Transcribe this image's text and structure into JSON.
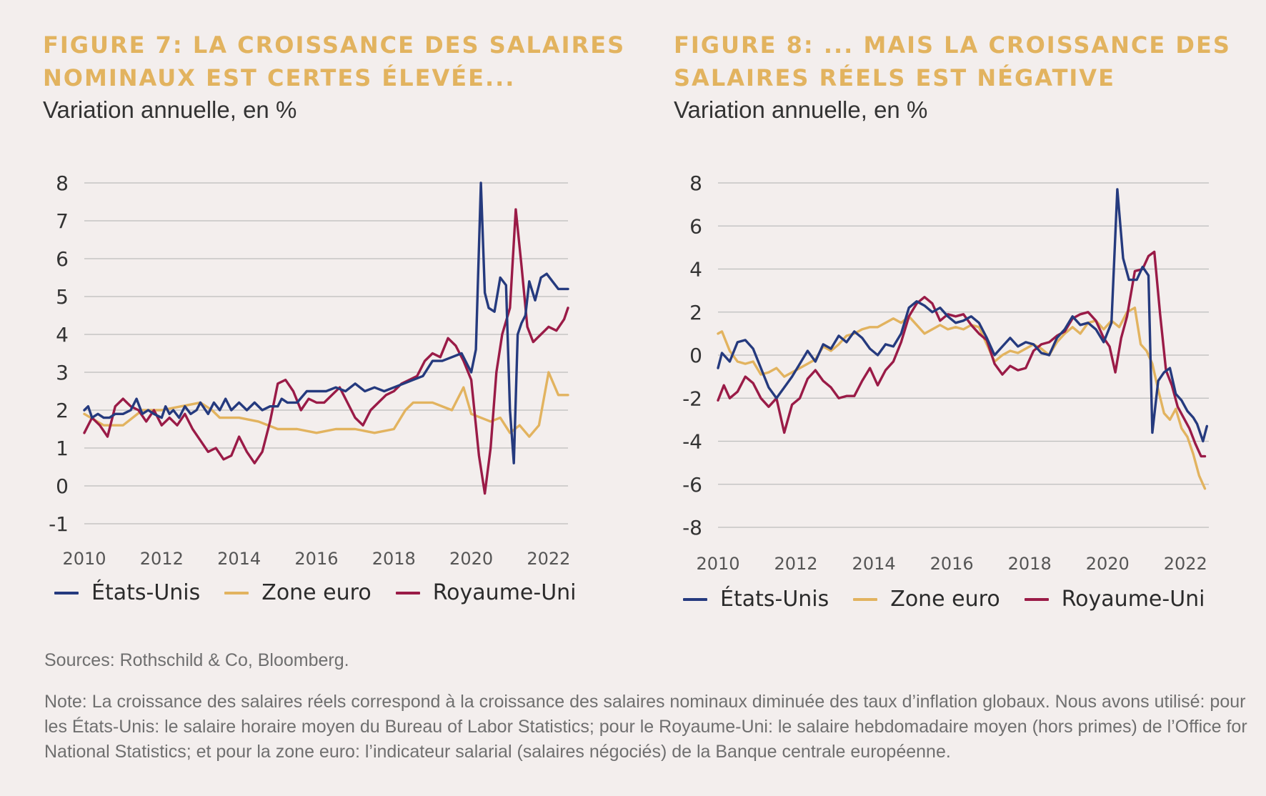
{
  "legend": {
    "us": "États-Unis",
    "ez": "Zone euro",
    "uk": "Royaume-Uni"
  },
  "colors": {
    "us": "#253a7e",
    "ez": "#e2b35f",
    "uk": "#9a1b47",
    "title": "#e2b35f",
    "grid": "#bdbdbd",
    "background": "#f3eeed"
  },
  "fig7": {
    "title_line1": "FIGURE 7: LA CROISSANCE DES SALAIRES",
    "title_line2": "NOMINAUX EST CERTES ÉLEVÉE...",
    "subtitle": "Variation annuelle, en %"
  },
  "fig8": {
    "title_line1": "FIGURE 8: ... MAIS LA CROISSANCE DES",
    "title_line2": "SALAIRES RÉELS EST NÉGATIVE",
    "subtitle": "Variation annuelle, en %"
  },
  "sources": "Sources: Rothschild & Co, Bloomberg.",
  "note": "Note: La croissance des salaires réels correspond à la croissance des salaires nominaux diminuée des taux d’inflation globaux. Nous avons utilisé: pour les États-Unis: le salaire horaire moyen du Bureau of Labor Statistics; pour le Royaume-Uni: le salaire hebdomadaire moyen (hors primes) de l’Office for National Statistics; et pour la zone euro: l’indicateur salarial (salaires négociés) de la Banque centrale européenne.",
  "chart_data": [
    {
      "type": "line",
      "title": "FIGURE 7: LA CROISSANCE DES SALAIRES NOMINAUX EST CERTES ÉLEVÉE...",
      "subtitle": "Variation annuelle, en %",
      "xlabel": "",
      "ylabel": "",
      "xlim": [
        2010,
        2022.5
      ],
      "ylim": [
        -1,
        8
      ],
      "x_ticks": [
        2010,
        2012,
        2014,
        2016,
        2018,
        2020,
        2022
      ],
      "y_ticks": [
        -1,
        0,
        1,
        2,
        3,
        4,
        5,
        6,
        7,
        8
      ],
      "grid": "horizontal",
      "legend_position": "bottom",
      "series": [
        {
          "name": "États-Unis",
          "x": [
            2010,
            2010.1,
            2010.2,
            2010.35,
            2010.5,
            2010.65,
            2010.8,
            2011,
            2011.2,
            2011.35,
            2011.5,
            2011.65,
            2011.8,
            2012,
            2012.1,
            2012.2,
            2012.3,
            2012.45,
            2012.6,
            2012.75,
            2012.9,
            2013,
            2013.2,
            2013.35,
            2013.5,
            2013.65,
            2013.8,
            2014,
            2014.2,
            2014.4,
            2014.6,
            2014.8,
            2015,
            2015.1,
            2015.25,
            2015.5,
            2015.75,
            2016,
            2016.25,
            2016.5,
            2016.75,
            2017,
            2017.25,
            2017.5,
            2017.75,
            2018,
            2018.25,
            2018.5,
            2018.75,
            2019,
            2019.25,
            2019.5,
            2019.75,
            2019.9,
            2020,
            2020.12,
            2020.25,
            2020.35,
            2020.45,
            2020.6,
            2020.75,
            2020.9,
            2021,
            2021.1,
            2021.2,
            2021.3,
            2021.4,
            2021.5,
            2021.65,
            2021.8,
            2021.95,
            2022.1,
            2022.25,
            2022.4,
            2022.5
          ],
          "y": [
            2.0,
            2.1,
            1.8,
            1.9,
            1.8,
            1.8,
            1.9,
            1.9,
            2.0,
            2.3,
            1.9,
            2.0,
            1.9,
            1.8,
            2.1,
            1.9,
            2.0,
            1.8,
            2.1,
            1.9,
            2.0,
            2.2,
            1.9,
            2.2,
            2.0,
            2.3,
            2.0,
            2.2,
            2.0,
            2.2,
            2.0,
            2.1,
            2.1,
            2.3,
            2.2,
            2.2,
            2.5,
            2.5,
            2.5,
            2.6,
            2.5,
            2.7,
            2.5,
            2.6,
            2.5,
            2.6,
            2.7,
            2.8,
            2.9,
            3.3,
            3.3,
            3.4,
            3.5,
            3.2,
            3.0,
            3.6,
            8.0,
            5.1,
            4.7,
            4.6,
            5.5,
            5.3,
            2.0,
            0.6,
            4.0,
            4.3,
            4.5,
            5.4,
            4.9,
            5.5,
            5.6,
            5.4,
            5.2,
            5.2,
            5.2
          ]
        },
        {
          "name": "Zone euro",
          "x": [
            2010,
            2010.5,
            2011,
            2011.5,
            2012,
            2012.5,
            2013,
            2013.3,
            2013.5,
            2014,
            2014.5,
            2015,
            2015.5,
            2016,
            2016.5,
            2017,
            2017.5,
            2018,
            2018.3,
            2018.5,
            2019,
            2019.5,
            2019.8,
            2020,
            2020.25,
            2020.5,
            2020.75,
            2021,
            2021.25,
            2021.5,
            2021.75,
            2022,
            2022.25,
            2022.5
          ],
          "y": [
            1.9,
            1.6,
            1.6,
            2.0,
            2.0,
            2.1,
            2.2,
            2.0,
            1.8,
            1.8,
            1.7,
            1.5,
            1.5,
            1.4,
            1.5,
            1.5,
            1.4,
            1.5,
            2.0,
            2.2,
            2.2,
            2.0,
            2.6,
            1.9,
            1.8,
            1.7,
            1.8,
            1.4,
            1.6,
            1.3,
            1.6,
            3.0,
            2.4,
            2.4
          ]
        },
        {
          "name": "Royaume-Uni",
          "x": [
            2010,
            2010.2,
            2010.4,
            2010.6,
            2010.8,
            2011,
            2011.2,
            2011.4,
            2011.6,
            2011.8,
            2012,
            2012.2,
            2012.4,
            2012.6,
            2012.8,
            2013,
            2013.2,
            2013.4,
            2013.6,
            2013.8,
            2014,
            2014.2,
            2014.4,
            2014.6,
            2014.8,
            2015,
            2015.2,
            2015.4,
            2015.6,
            2015.8,
            2016,
            2016.2,
            2016.4,
            2016.6,
            2016.8,
            2017,
            2017.2,
            2017.4,
            2017.6,
            2017.8,
            2018,
            2018.2,
            2018.4,
            2018.6,
            2018.8,
            2019,
            2019.2,
            2019.4,
            2019.6,
            2019.8,
            2020,
            2020.2,
            2020.35,
            2020.5,
            2020.65,
            2020.8,
            2021,
            2021.15,
            2021.3,
            2021.45,
            2021.6,
            2021.8,
            2022,
            2022.2,
            2022.4,
            2022.5
          ],
          "y": [
            1.4,
            1.8,
            1.6,
            1.3,
            2.1,
            2.3,
            2.1,
            2.0,
            1.7,
            2.0,
            1.6,
            1.8,
            1.6,
            1.9,
            1.5,
            1.2,
            0.9,
            1.0,
            0.7,
            0.8,
            1.3,
            0.9,
            0.6,
            0.9,
            1.7,
            2.7,
            2.8,
            2.5,
            2.0,
            2.3,
            2.2,
            2.2,
            2.4,
            2.6,
            2.2,
            1.8,
            1.6,
            2.0,
            2.2,
            2.4,
            2.5,
            2.7,
            2.8,
            2.9,
            3.3,
            3.5,
            3.4,
            3.9,
            3.7,
            3.3,
            2.8,
            0.8,
            -0.2,
            1.0,
            3.0,
            4.0,
            4.7,
            7.3,
            5.8,
            4.2,
            3.8,
            4.0,
            4.2,
            4.1,
            4.4,
            4.7
          ]
        }
      ]
    },
    {
      "type": "line",
      "title": "FIGURE 8: ... MAIS LA CROISSANCE DES SALAIRES RÉELS EST NÉGATIVE",
      "subtitle": "Variation annuelle, en %",
      "xlabel": "",
      "ylabel": "",
      "xlim": [
        2010,
        2022.6
      ],
      "ylim": [
        -8,
        8
      ],
      "x_ticks": [
        2010,
        2012,
        2014,
        2016,
        2018,
        2020,
        2022
      ],
      "y_ticks": [
        -8,
        -6,
        -4,
        -2,
        0,
        2,
        4,
        6,
        8
      ],
      "grid": "horizontal",
      "legend_position": "bottom",
      "series": [
        {
          "name": "États-Unis",
          "x": [
            2010,
            2010.1,
            2010.3,
            2010.5,
            2010.7,
            2010.9,
            2011.1,
            2011.3,
            2011.5,
            2011.7,
            2011.9,
            2012.1,
            2012.3,
            2012.5,
            2012.7,
            2012.9,
            2013.1,
            2013.3,
            2013.5,
            2013.7,
            2013.9,
            2014.1,
            2014.3,
            2014.5,
            2014.7,
            2014.9,
            2015.1,
            2015.3,
            2015.5,
            2015.7,
            2015.9,
            2016.1,
            2016.3,
            2016.5,
            2016.7,
            2016.9,
            2017.1,
            2017.3,
            2017.5,
            2017.7,
            2017.9,
            2018.1,
            2018.3,
            2018.5,
            2018.7,
            2018.9,
            2019.1,
            2019.3,
            2019.5,
            2019.7,
            2019.9,
            2020.1,
            2020.25,
            2020.4,
            2020.55,
            2020.75,
            2020.9,
            2021.05,
            2021.15,
            2021.3,
            2021.45,
            2021.6,
            2021.75,
            2021.9,
            2022.05,
            2022.2,
            2022.3,
            2022.45,
            2022.55
          ],
          "y": [
            -0.6,
            0.1,
            -0.3,
            0.6,
            0.7,
            0.3,
            -0.6,
            -1.5,
            -2.0,
            -1.5,
            -1.0,
            -0.4,
            0.2,
            -0.3,
            0.5,
            0.3,
            0.9,
            0.6,
            1.1,
            0.8,
            0.3,
            0.0,
            0.5,
            0.4,
            1.0,
            2.2,
            2.5,
            2.3,
            2.0,
            2.2,
            1.8,
            1.5,
            1.6,
            1.8,
            1.5,
            0.8,
            0.0,
            0.4,
            0.8,
            0.4,
            0.6,
            0.5,
            0.1,
            0.0,
            0.8,
            1.2,
            1.8,
            1.4,
            1.5,
            1.2,
            0.6,
            1.5,
            7.7,
            4.5,
            3.5,
            3.5,
            4.1,
            3.7,
            -3.6,
            -1.2,
            -0.8,
            -0.6,
            -1.8,
            -2.1,
            -2.6,
            -2.9,
            -3.2,
            -4.0,
            -3.3
          ]
        },
        {
          "name": "Zone euro",
          "x": [
            2010,
            2010.1,
            2010.3,
            2010.5,
            2010.7,
            2010.9,
            2011.1,
            2011.3,
            2011.5,
            2011.7,
            2011.9,
            2012.1,
            2012.3,
            2012.5,
            2012.7,
            2012.9,
            2013.1,
            2013.3,
            2013.5,
            2013.7,
            2013.9,
            2014.1,
            2014.3,
            2014.5,
            2014.7,
            2014.9,
            2015.1,
            2015.3,
            2015.5,
            2015.7,
            2015.9,
            2016.1,
            2016.3,
            2016.5,
            2016.7,
            2016.9,
            2017.1,
            2017.3,
            2017.5,
            2017.7,
            2017.9,
            2018.1,
            2018.3,
            2018.5,
            2018.7,
            2018.9,
            2019.1,
            2019.3,
            2019.5,
            2019.7,
            2019.9,
            2020.1,
            2020.3,
            2020.5,
            2020.7,
            2020.85,
            2021,
            2021.15,
            2021.3,
            2021.45,
            2021.6,
            2021.75,
            2021.9,
            2022.05,
            2022.2,
            2022.35,
            2022.5
          ],
          "y": [
            1.0,
            1.1,
            0.2,
            -0.3,
            -0.4,
            -0.3,
            -0.9,
            -0.8,
            -0.6,
            -1.0,
            -0.8,
            -0.6,
            -0.4,
            -0.2,
            0.4,
            0.2,
            0.5,
            0.9,
            1.0,
            1.2,
            1.3,
            1.3,
            1.5,
            1.7,
            1.5,
            1.8,
            1.4,
            1.0,
            1.2,
            1.4,
            1.2,
            1.3,
            1.2,
            1.4,
            1.3,
            0.5,
            -0.3,
            0.0,
            0.2,
            0.1,
            0.3,
            0.5,
            0.3,
            0.0,
            0.6,
            1.0,
            1.3,
            1.0,
            1.5,
            1.6,
            1.2,
            1.6,
            1.3,
            2.0,
            2.2,
            0.5,
            0.2,
            -0.4,
            -1.6,
            -2.7,
            -3.0,
            -2.5,
            -3.4,
            -3.8,
            -4.6,
            -5.6,
            -6.2
          ]
        },
        {
          "name": "Royaume-Uni",
          "x": [
            2010,
            2010.15,
            2010.3,
            2010.5,
            2010.7,
            2010.9,
            2011.1,
            2011.3,
            2011.5,
            2011.7,
            2011.9,
            2012.1,
            2012.3,
            2012.5,
            2012.7,
            2012.9,
            2013.1,
            2013.3,
            2013.5,
            2013.7,
            2013.9,
            2014.1,
            2014.3,
            2014.5,
            2014.7,
            2014.9,
            2015.1,
            2015.3,
            2015.5,
            2015.7,
            2015.9,
            2016.1,
            2016.3,
            2016.5,
            2016.7,
            2016.9,
            2017.1,
            2017.3,
            2017.5,
            2017.7,
            2017.9,
            2018.1,
            2018.3,
            2018.5,
            2018.7,
            2018.9,
            2019.1,
            2019.3,
            2019.5,
            2019.7,
            2019.9,
            2020.05,
            2020.2,
            2020.35,
            2020.5,
            2020.7,
            2020.9,
            2021.05,
            2021.2,
            2021.35,
            2021.5,
            2021.65,
            2021.8,
            2021.95,
            2022.1,
            2022.25,
            2022.4,
            2022.5
          ],
          "y": [
            -2.1,
            -1.4,
            -2.0,
            -1.7,
            -1.0,
            -1.3,
            -2.0,
            -2.4,
            -2.0,
            -3.6,
            -2.3,
            -2.0,
            -1.1,
            -0.7,
            -1.2,
            -1.5,
            -2.0,
            -1.9,
            -1.9,
            -1.2,
            -0.6,
            -1.4,
            -0.7,
            -0.3,
            0.6,
            1.8,
            2.4,
            2.7,
            2.4,
            1.6,
            1.9,
            1.8,
            1.9,
            1.4,
            1.0,
            0.7,
            -0.4,
            -0.9,
            -0.5,
            -0.7,
            -0.6,
            0.2,
            0.5,
            0.6,
            0.9,
            1.1,
            1.7,
            1.9,
            2.0,
            1.6,
            0.8,
            0.4,
            -0.8,
            0.8,
            1.8,
            3.9,
            4.0,
            4.6,
            4.8,
            1.9,
            -0.7,
            -1.4,
            -2.4,
            -2.9,
            -3.4,
            -4.1,
            -4.7,
            -4.7
          ]
        }
      ]
    }
  ]
}
